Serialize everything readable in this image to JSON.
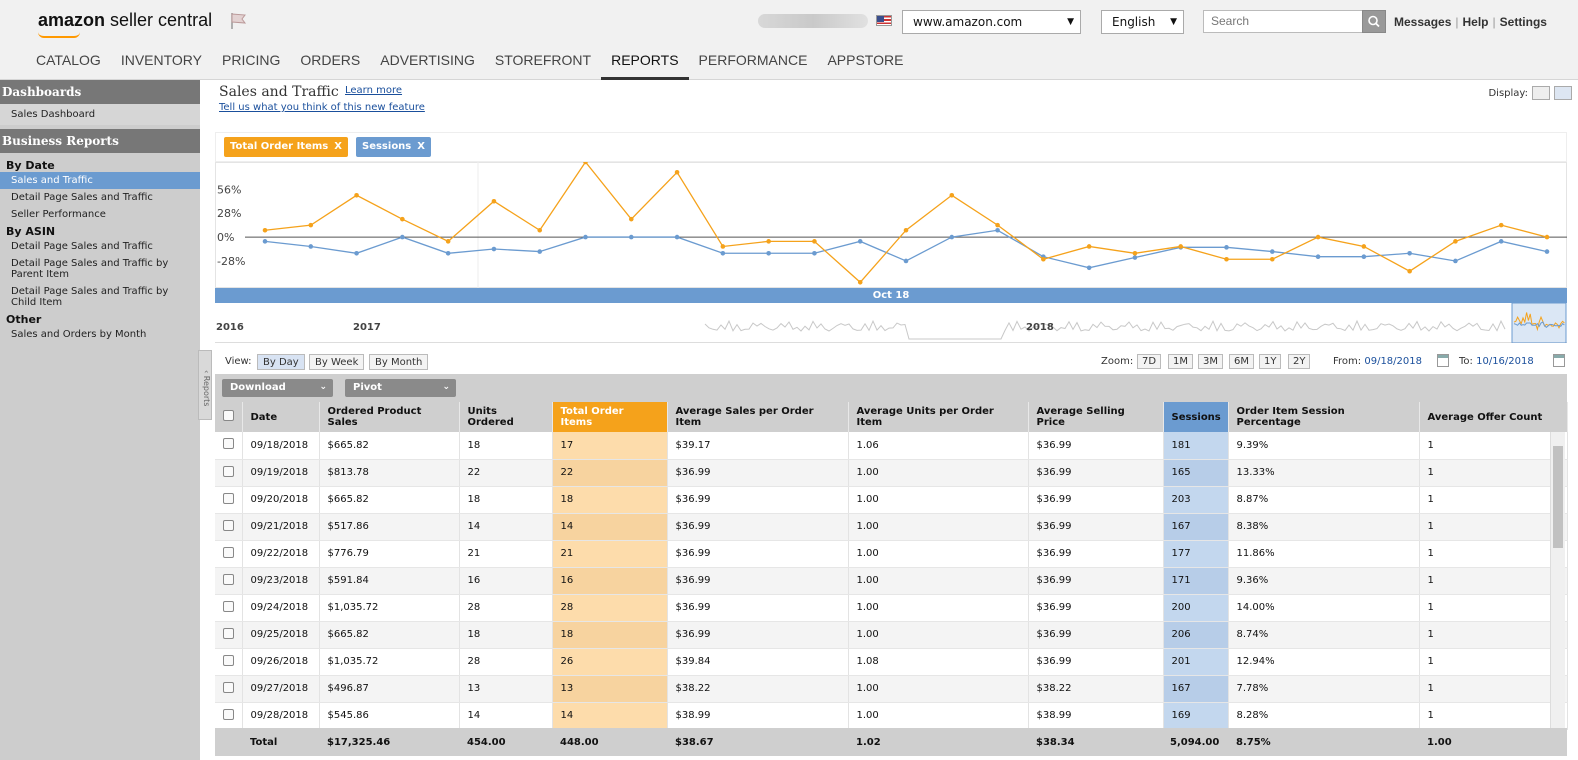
{
  "header": {
    "logo_bold": "amazon",
    "logo_light": " seller central",
    "marketplace": "www.amazon.com",
    "language": "English",
    "search_placeholder": "Search",
    "links": [
      "Messages",
      "Help",
      "Settings"
    ]
  },
  "nav": [
    "CATALOG",
    "INVENTORY",
    "PRICING",
    "ORDERS",
    "ADVERTISING",
    "STOREFRONT",
    "REPORTS",
    "PERFORMANCE",
    "APPSTORE"
  ],
  "sidebar": {
    "dashboards_title": "Dashboards",
    "sales_dashboard": "Sales Dashboard",
    "business_reports_title": "Business Reports",
    "by_date": "By Date",
    "by_date_items": [
      "Sales and Traffic",
      "Detail Page Sales and Traffic",
      "Seller Performance"
    ],
    "by_asin": "By ASIN",
    "by_asin_items": [
      "Detail Page Sales and Traffic",
      "Detail Page Sales and Traffic by Parent Item",
      "Detail Page Sales and Traffic by Child Item"
    ],
    "other": "Other",
    "other_items": [
      "Sales and Orders by Month"
    ],
    "collapse_label": "Reports"
  },
  "page": {
    "title": "Sales and Traffic",
    "learn_more": "Learn more",
    "feedback": "Tell us what you think of this new feature",
    "display_label": "Display:"
  },
  "chips": [
    {
      "label": "Total Order Items",
      "color": "#f5a21b"
    },
    {
      "label": "Sessions",
      "color": "#6b9bd0"
    }
  ],
  "chart_data": {
    "type": "line",
    "y_ticks": [
      "56%",
      "28%",
      "0%",
      "-28%"
    ],
    "ylim": [
      -55,
      88
    ],
    "timeline_label": "Oct 18",
    "overview_years": [
      "2016",
      "2017",
      "2018"
    ],
    "series": [
      {
        "name": "Total Order Items",
        "color": "#f5a21b",
        "values": [
          8,
          14,
          49,
          21,
          -5,
          42,
          8,
          88,
          21,
          76,
          -11,
          -5,
          -5,
          -53,
          8,
          49,
          14,
          -26,
          -11,
          -19,
          -11,
          -26,
          -26,
          0,
          -11,
          -40,
          -5,
          14,
          0
        ]
      },
      {
        "name": "Sessions",
        "color": "#6b9bd0",
        "values": [
          -5,
          -11,
          -19,
          0,
          -19,
          -14,
          -17,
          0,
          0,
          0,
          -19,
          -19,
          -19,
          -5,
          -28,
          0,
          8,
          -23,
          -36,
          -24,
          -12,
          -12,
          -17,
          -23,
          -23,
          -19,
          -28,
          -5,
          -17
        ]
      }
    ]
  },
  "view": {
    "label": "View:",
    "buttons": [
      "By Day",
      "By Week",
      "By Month"
    ],
    "zoom_label": "Zoom:",
    "zoom": [
      "7D",
      "1M",
      "3M",
      "6M",
      "1Y",
      "2Y"
    ],
    "from_label": "From:",
    "from": "09/18/2018",
    "to_label": "To:",
    "to": "10/16/2018"
  },
  "toolbar": {
    "download": "Download",
    "pivot": "Pivot"
  },
  "table": {
    "columns": [
      "Date",
      "Ordered Product Sales",
      "Units Ordered",
      "Total Order Items",
      "Average Sales per Order Item",
      "Average Units per Order Item",
      "Average Selling Price",
      "Sessions",
      "Order Item Session Percentage",
      "Average Offer Count"
    ],
    "rows": [
      [
        "09/18/2018",
        "$665.82",
        "18",
        "17",
        "$39.17",
        "1.06",
        "$36.99",
        "181",
        "9.39%",
        "1"
      ],
      [
        "09/19/2018",
        "$813.78",
        "22",
        "22",
        "$36.99",
        "1.00",
        "$36.99",
        "165",
        "13.33%",
        "1"
      ],
      [
        "09/20/2018",
        "$665.82",
        "18",
        "18",
        "$36.99",
        "1.00",
        "$36.99",
        "203",
        "8.87%",
        "1"
      ],
      [
        "09/21/2018",
        "$517.86",
        "14",
        "14",
        "$36.99",
        "1.00",
        "$36.99",
        "167",
        "8.38%",
        "1"
      ],
      [
        "09/22/2018",
        "$776.79",
        "21",
        "21",
        "$36.99",
        "1.00",
        "$36.99",
        "177",
        "11.86%",
        "1"
      ],
      [
        "09/23/2018",
        "$591.84",
        "16",
        "16",
        "$36.99",
        "1.00",
        "$36.99",
        "171",
        "9.36%",
        "1"
      ],
      [
        "09/24/2018",
        "$1,035.72",
        "28",
        "28",
        "$36.99",
        "1.00",
        "$36.99",
        "200",
        "14.00%",
        "1"
      ],
      [
        "09/25/2018",
        "$665.82",
        "18",
        "18",
        "$36.99",
        "1.00",
        "$36.99",
        "206",
        "8.74%",
        "1"
      ],
      [
        "09/26/2018",
        "$1,035.72",
        "28",
        "26",
        "$39.84",
        "1.08",
        "$36.99",
        "201",
        "12.94%",
        "1"
      ],
      [
        "09/27/2018",
        "$496.87",
        "13",
        "13",
        "$38.22",
        "1.00",
        "$38.22",
        "167",
        "7.78%",
        "1"
      ],
      [
        "09/28/2018",
        "$545.86",
        "14",
        "14",
        "$38.99",
        "1.00",
        "$38.99",
        "169",
        "8.28%",
        "1"
      ]
    ],
    "total": [
      "Total",
      "$17,325.46",
      "454.00",
      "448.00",
      "$38.67",
      "1.02",
      "$38.34",
      "5,094.00",
      "8.75%",
      "1.00"
    ]
  }
}
